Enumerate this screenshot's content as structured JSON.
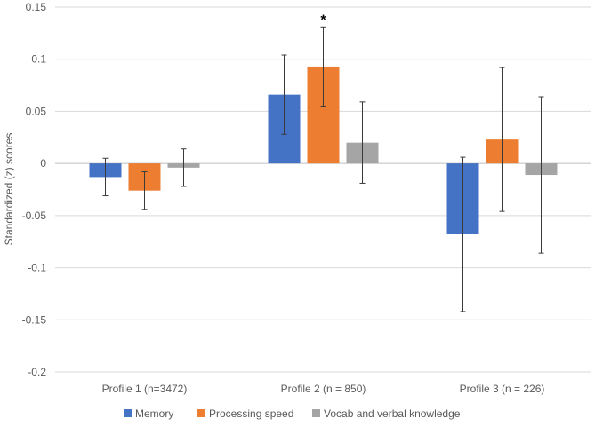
{
  "chart_data": {
    "type": "bar",
    "title": "",
    "xlabel": "",
    "ylabel": "Standardized (z) scores",
    "ylim": [
      -0.2,
      0.15
    ],
    "yticks": [
      0.15,
      0.1,
      0.05,
      0,
      -0.05,
      -0.1,
      -0.15,
      -0.2
    ],
    "ytick_labels": [
      "0.15",
      "0.1",
      "0.05",
      "0",
      "-0.05",
      "-0.1",
      "-0.15",
      "-0.2"
    ],
    "grid": true,
    "legend_position": "bottom",
    "categories": [
      "Profile 1 (n=3472)",
      "Profile 2 (n = 850)",
      "Profile 3 (n = 226)"
    ],
    "series": [
      {
        "name": "Memory",
        "color": "#4472c4",
        "values": [
          -0.013,
          0.066,
          -0.068
        ],
        "error_low": [
          -0.031,
          0.028,
          -0.142
        ],
        "error_high": [
          0.005,
          0.104,
          0.006
        ]
      },
      {
        "name": "Processing speed",
        "color": "#ed7d31",
        "values": [
          -0.026,
          0.093,
          0.023
        ],
        "error_low": [
          -0.044,
          0.055,
          -0.046
        ],
        "error_high": [
          -0.008,
          0.131,
          0.092
        ]
      },
      {
        "name": "Vocab and verbal knowledge",
        "color": "#a5a5a5",
        "values": [
          -0.004,
          0.02,
          -0.011
        ],
        "error_low": [
          -0.022,
          -0.019,
          -0.086
        ],
        "error_high": [
          0.014,
          0.059,
          0.064
        ]
      }
    ],
    "annotations": [
      {
        "text": "*",
        "category_index": 1,
        "series_index": 1
      }
    ]
  }
}
